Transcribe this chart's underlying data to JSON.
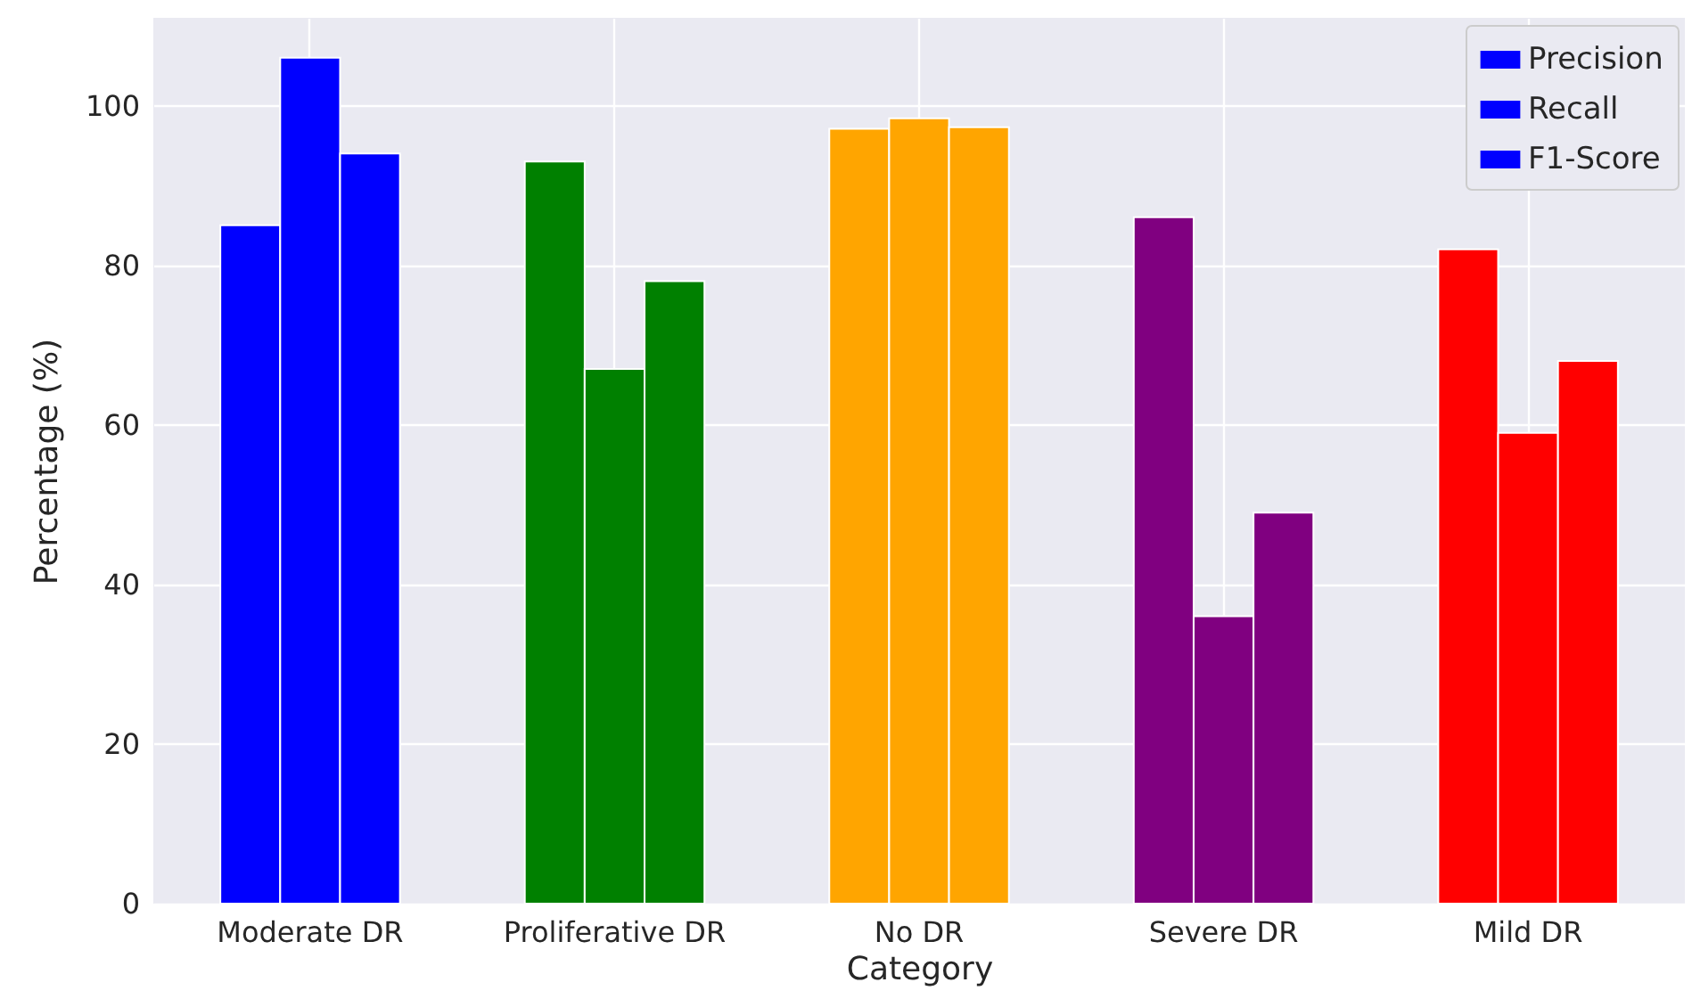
{
  "chart_data": {
    "type": "bar",
    "xlabel": "Category",
    "ylabel": "Percentage (%)",
    "categories": [
      "Moderate DR",
      "Proliferative DR",
      "No DR",
      "Severe DR",
      "Mild DR"
    ],
    "series": [
      {
        "name": "Precision",
        "color": "#0000ff",
        "colors": [
          "#0000ff",
          "#008000",
          "#ffa500",
          "#800080",
          "#ff0000"
        ],
        "values": [
          85,
          93,
          97.1,
          86,
          82
        ]
      },
      {
        "name": "Recall",
        "color": "#0000ff",
        "colors": [
          "#0000ff",
          "#008000",
          "#ffa500",
          "#800080",
          "#ff0000"
        ],
        "values": [
          106,
          67,
          98.4,
          36,
          59
        ]
      },
      {
        "name": "F1-Score",
        "color": "#0000ff",
        "colors": [
          "#0000ff",
          "#008000",
          "#ffa500",
          "#800080",
          "#ff0000"
        ],
        "values": [
          94,
          78,
          97.3,
          49,
          68
        ]
      }
    ],
    "ylim": [
      0,
      111
    ],
    "yticks": [
      0,
      20,
      40,
      60,
      80,
      100
    ],
    "grid": true,
    "legend": "top right"
  }
}
